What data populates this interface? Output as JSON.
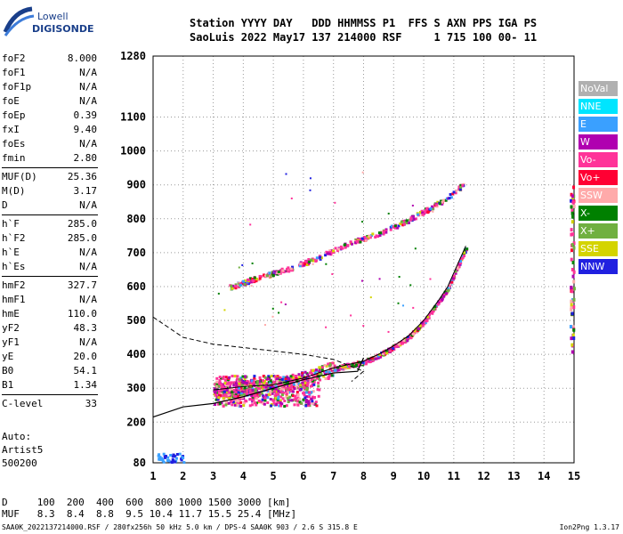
{
  "logo": {
    "line1": "Lowell",
    "line2": "DIGISONDE"
  },
  "header": {
    "labels": "Station YYYY DAY   DDD HHMMSS P1  FFS S AXN PPS IGA PS",
    "values": "SaoLuis 2022 May17 137 214000 RSF     1 715 100 00- 11"
  },
  "params": {
    "g1": [
      [
        "foF2",
        "8.000"
      ],
      [
        "foF1",
        "N/A"
      ],
      [
        "foF1p",
        "N/A"
      ],
      [
        "foE",
        "N/A"
      ],
      [
        "foEp",
        "0.39"
      ],
      [
        "fxI",
        "9.40"
      ],
      [
        "foEs",
        "N/A"
      ],
      [
        "fmin",
        "2.80"
      ]
    ],
    "g2": [
      [
        "MUF(D)",
        "25.36"
      ],
      [
        "M(D)",
        "3.17"
      ],
      [
        "D",
        "N/A"
      ]
    ],
    "g3": [
      [
        "h`F",
        "285.0"
      ],
      [
        "h`F2",
        "285.0"
      ],
      [
        "h`E",
        "N/A"
      ],
      [
        "h`Es",
        "N/A"
      ]
    ],
    "g4": [
      [
        "hmF2",
        "327.7"
      ],
      [
        "hmF1",
        "N/A"
      ],
      [
        "hmE",
        "110.0"
      ],
      [
        "yF2",
        "48.3"
      ],
      [
        "yF1",
        "N/A"
      ],
      [
        "yE",
        "20.0"
      ],
      [
        "B0",
        "54.1"
      ],
      [
        "B1",
        "1.34"
      ]
    ],
    "g5": [
      [
        "C-level",
        "33"
      ]
    ]
  },
  "auto": {
    "l1": "Auto:",
    "l2": "Artist5",
    "l3": "500200"
  },
  "legend": [
    {
      "label": "NoVal",
      "color": "#b0b0b0"
    },
    {
      "label": "NNE",
      "color": "#00e5ff"
    },
    {
      "label": "E",
      "color": "#3aa0ff"
    },
    {
      "label": "W",
      "color": "#b000b0"
    },
    {
      "label": "Vo-",
      "color": "#ff3399"
    },
    {
      "label": "Vo+",
      "color": "#ff0033"
    },
    {
      "label": "SSW",
      "color": "#ffaaaa"
    },
    {
      "label": "X-",
      "color": "#008000"
    },
    {
      "label": "X+",
      "color": "#70b040"
    },
    {
      "label": "SSE",
      "color": "#d4d400"
    },
    {
      "label": "NNW",
      "color": "#2020e0"
    }
  ],
  "chart_data": {
    "type": "scatter",
    "x_ticks": [
      "1",
      "2",
      "3",
      "4",
      "5",
      "6",
      "7",
      "8",
      "9",
      "10",
      "11",
      "12",
      "13",
      "14",
      "15"
    ],
    "y_ticks": [
      "80",
      "200",
      "300",
      "400",
      "500",
      "600",
      "700",
      "800",
      "900",
      "1000",
      "1100",
      "1280"
    ],
    "xlim": [
      1,
      15
    ],
    "ylim": [
      80,
      1280
    ],
    "grid": true,
    "traces": [
      {
        "name": "F2 O-trace",
        "x": [
          3.0,
          4.0,
          5.0,
          6.0,
          6.5,
          7.0,
          7.5,
          8.0,
          8.5,
          9.0,
          9.5,
          10.0,
          10.5,
          10.8,
          11.0,
          11.2,
          11.4
        ],
        "y": [
          295,
          305,
          310,
          330,
          345,
          360,
          370,
          380,
          400,
          425,
          455,
          500,
          560,
          600,
          640,
          680,
          720
        ]
      },
      {
        "name": "F2 X-trace",
        "x": [
          3.5,
          4.5,
          5.5,
          6.5,
          7.5,
          8.5,
          9.5,
          10.5,
          11.0,
          11.3
        ],
        "y": [
          600,
          630,
          655,
          690,
          730,
          760,
          800,
          850,
          880,
          905
        ]
      }
    ],
    "profile": {
      "x": [
        1.0,
        2.0,
        3.0,
        4.0,
        5.0,
        6.0,
        7.0,
        7.8,
        8.0
      ],
      "y": [
        215,
        245,
        255,
        275,
        300,
        325,
        345,
        350,
        390
      ]
    },
    "model_curve": {
      "x": [
        1.0,
        2.0,
        3.0,
        4.0,
        5.0,
        6.0,
        7.0,
        8.0,
        7.6
      ],
      "y": [
        510,
        450,
        430,
        420,
        410,
        400,
        385,
        350,
        320
      ]
    }
  },
  "footer": {
    "d_row": "D     100  200  400  600  800 1000 1500 3000 [km]",
    "muf_row": "MUF   8.3  8.4  8.8  9.5 10.4 11.7 15.5 25.4 [MHz]"
  },
  "tiny": "SAA0K_2022137214000.RSF / 280fx256h 50 kHz 5.0 km / DPS-4 SAA0K 903 / 2.6 S 315.8 E",
  "version": "Ion2Png 1.3.17"
}
